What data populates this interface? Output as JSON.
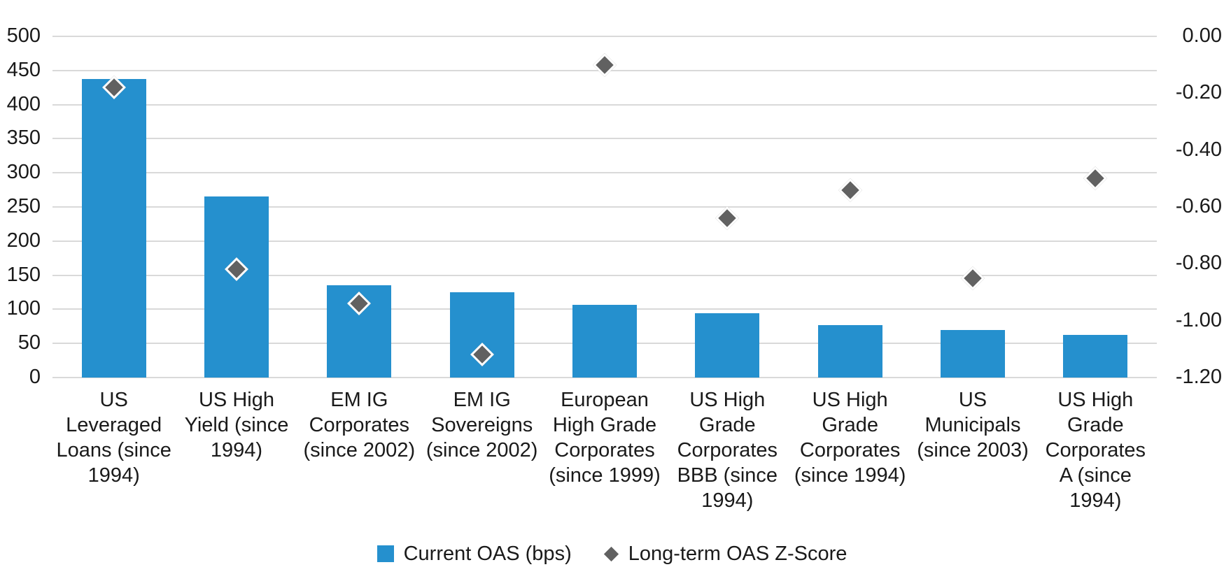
{
  "chart_data": {
    "type": "combo",
    "subtype": "bar+scatter",
    "categories": [
      "US Leveraged Loans (since 1994)",
      "US High Yield (since 1994)",
      "EM IG Corporates (since 2002)",
      "EM IG Sovereigns (since 2002)",
      "European High Grade Corporates (since 1999)",
      "US High Grade Corporates BBB (since 1994)",
      "US High Grade Corporates (since 1994)",
      "US Municipals (since 2003)",
      "US High Grade Corporates A (since 1994)"
    ],
    "category_label_lines": [
      [
        "US",
        "Leveraged",
        "Loans (since",
        "1994)"
      ],
      [
        "US High",
        "Yield (since",
        "1994)"
      ],
      [
        "EM IG",
        "Corporates",
        "(since 2002)"
      ],
      [
        "EM IG",
        "Sovereigns",
        "(since 2002)"
      ],
      [
        "European",
        "High Grade",
        "Corporates",
        "(since 1999)"
      ],
      [
        "US High",
        "Grade",
        "Corporates",
        "BBB (since",
        "1994)"
      ],
      [
        "US High",
        "Grade",
        "Corporates",
        "(since 1994)"
      ],
      [
        "US",
        "Municipals",
        "(since 2003)"
      ],
      [
        "US High",
        "Grade",
        "Corporates",
        "A (since",
        "1994)"
      ]
    ],
    "series": [
      {
        "name": "Current OAS (bps)",
        "type": "bar",
        "axis": "left",
        "color": "#2590ce",
        "values": [
          438,
          265,
          135,
          125,
          107,
          94,
          77,
          70,
          63
        ]
      },
      {
        "name": "Long-term OAS Z-Score",
        "type": "scatter",
        "marker": "diamond",
        "axis": "right",
        "color": "#616161",
        "values": [
          -0.18,
          -0.82,
          -0.94,
          -1.12,
          -0.1,
          -0.64,
          -0.54,
          -0.85,
          -0.5
        ]
      }
    ],
    "left_axis": {
      "min": 0,
      "max": 500,
      "step": 50,
      "tick_labels": [
        "500",
        "450",
        "400",
        "350",
        "300",
        "250",
        "200",
        "150",
        "100",
        "50",
        "0"
      ]
    },
    "right_axis": {
      "min": -1.2,
      "max": 0.0,
      "step": 0.2,
      "tick_labels": [
        "0.00",
        "-0.20",
        "-0.40",
        "-0.60",
        "-0.80",
        "-1.00",
        "-1.20"
      ]
    },
    "grid": true,
    "gridline_color": "#d9d9d9",
    "legend_position": "bottom",
    "title": "",
    "xlabel": "",
    "ylabel_left": "",
    "ylabel_right": ""
  },
  "legend": {
    "items": [
      {
        "label": "Current OAS (bps)",
        "swatch": "square",
        "color": "#2590ce"
      },
      {
        "label": "Long-term OAS Z-Score",
        "swatch": "diamond",
        "color": "#616161"
      }
    ]
  }
}
